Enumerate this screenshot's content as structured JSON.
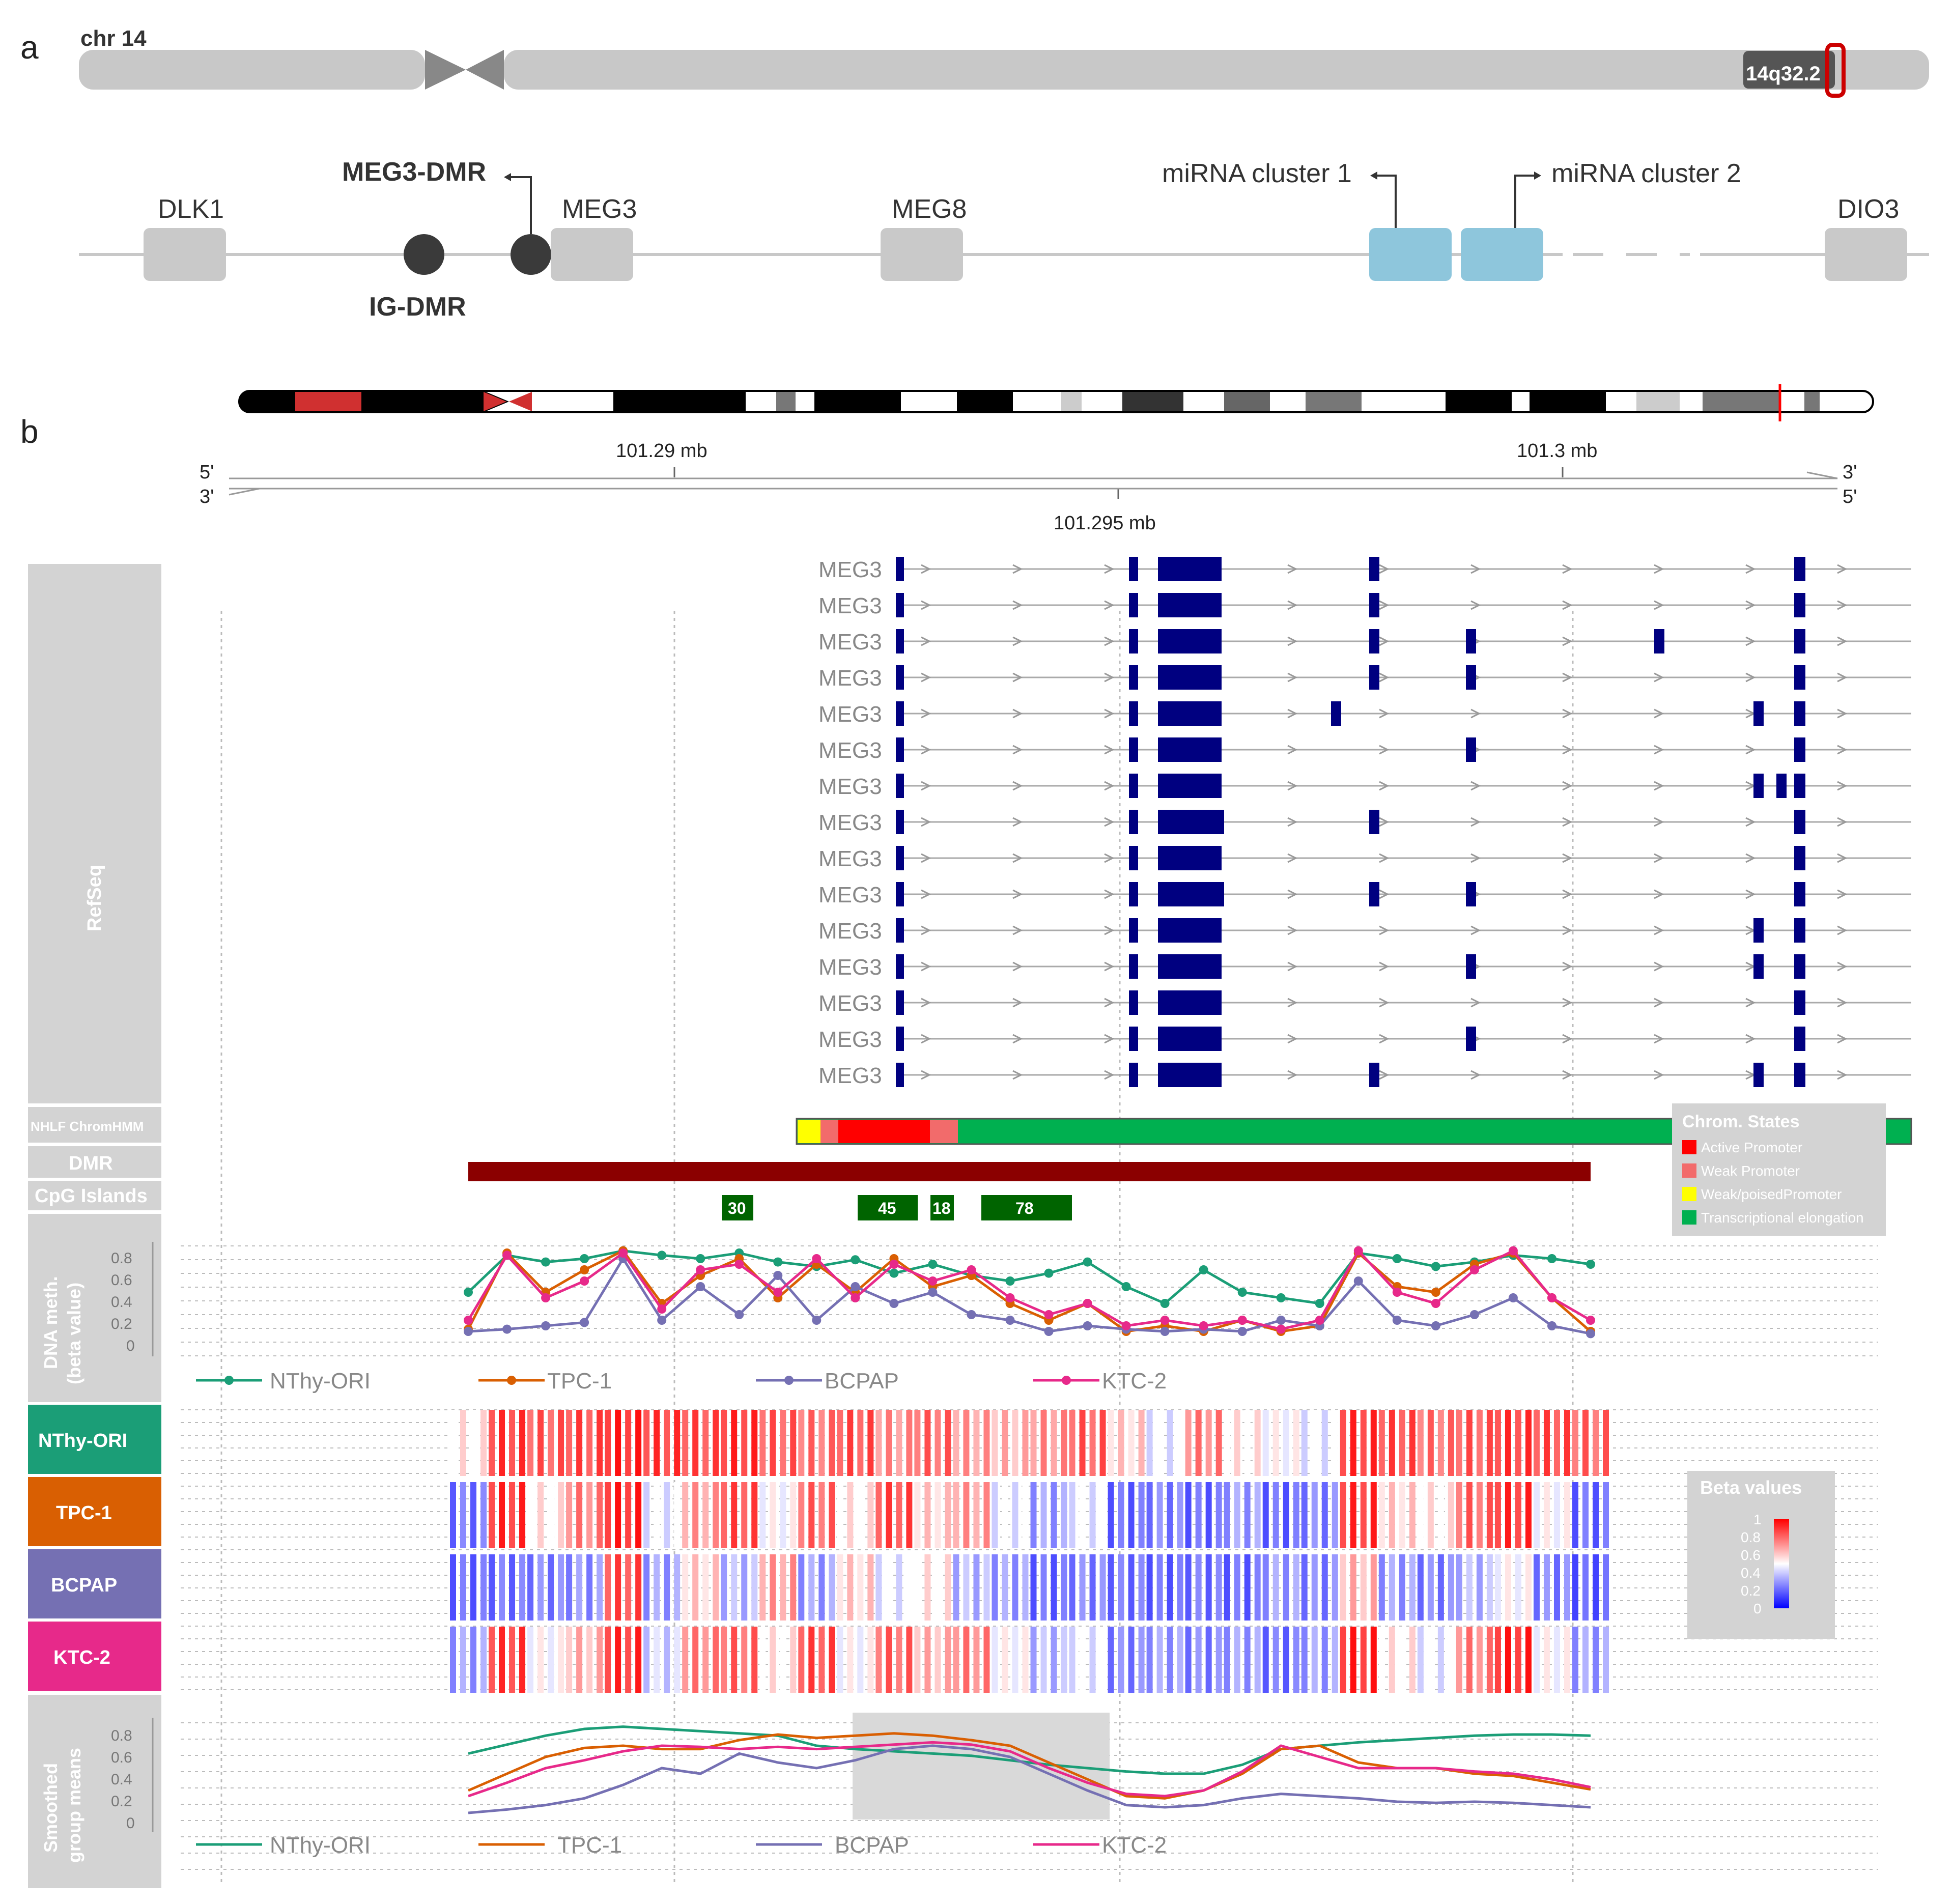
{
  "panel_a": {
    "letter": "a",
    "chromosome_label": "chr 14",
    "band_label": "14q32.2",
    "genes": {
      "dlk1": "DLK1",
      "meg3": "MEG3",
      "meg8": "MEG8",
      "dio3": "DIO3"
    },
    "meg3_dmr_label": "MEG3-DMR",
    "ig_dmr_label": "IG-DMR",
    "mirna_cluster_1": "miRNA cluster 1",
    "mirna_cluster_2": "miRNA cluster 2",
    "colors": {
      "gene_box": "#c9c9c9",
      "mirna_box": "#8ec6dc",
      "dmr_dot": "#3a3a3a",
      "band_highlight": "#cc0000"
    }
  },
  "panel_b": {
    "letter": "b",
    "axis": {
      "ticks_top": [
        "101.29 mb",
        "101.3 mb"
      ],
      "tick_bottom": "101.295 mb",
      "strand_5p": "5'",
      "strand_3p": "3'"
    },
    "tracks": {
      "refseq": "RefSeq",
      "chromhmm": "NHLF ChromHMM",
      "dmr": "DMR",
      "cpg": "CpG Islands",
      "dna_meth_line1": "DNA meth.",
      "dna_meth_line2": "(beta value)",
      "smoothed_line1": "Smoothed",
      "smoothed_line2": "group means"
    },
    "refseq_transcripts": [
      "MEG3",
      "MEG3",
      "MEG3",
      "MEG3",
      "MEG3",
      "MEG3",
      "MEG3",
      "MEG3",
      "MEG3",
      "MEG3",
      "MEG3",
      "MEG3",
      "MEG3",
      "MEG3",
      "MEG3"
    ],
    "cpg_islands": [
      "30",
      "45",
      "18",
      "78"
    ],
    "chrom_states_legend": {
      "title": "Chrom. States",
      "items": [
        {
          "label": "Active Promoter",
          "color": "#ff0000"
        },
        {
          "label": "Weak Promoter",
          "color": "#f26b6b"
        },
        {
          "label": "Weak/poisedPromoter",
          "color": "#ffff00"
        },
        {
          "label": "Transcriptional elongation",
          "color": "#00b050"
        }
      ]
    },
    "beta_legend": {
      "title": "Beta values",
      "ticks": [
        "1",
        "0.8",
        "0.6",
        "0.4",
        "0.2",
        "0"
      ]
    },
    "meth_axis_ticks": [
      "0.8",
      "0.6",
      "0.4",
      "0.2",
      "0"
    ],
    "smoothed_axis_ticks": [
      "0.8",
      "0.6",
      "0.4",
      "0.2",
      "0"
    ],
    "samples": [
      {
        "name": "NThy-ORI",
        "color": "#1b9e77"
      },
      {
        "name": "TPC-1",
        "color": "#d95f02"
      },
      {
        "name": "BCPAP",
        "color": "#7570b3"
      },
      {
        "name": "KTC-2",
        "color": "#e7298a"
      }
    ]
  },
  "chart_data": [
    {
      "type": "line",
      "ylabel": "DNA meth. (beta value)",
      "ylim": [
        0,
        1
      ],
      "x": [
        1,
        2,
        3,
        4,
        5,
        6,
        7,
        8,
        9,
        10,
        11,
        12,
        13,
        14,
        15,
        16,
        17,
        18,
        19,
        20,
        21,
        22,
        23,
        24,
        25,
        26,
        27,
        28,
        29,
        30
      ],
      "series": [
        {
          "name": "NThy-ORI",
          "values": [
            0.55,
            0.88,
            0.82,
            0.85,
            0.92,
            0.88,
            0.85,
            0.9,
            0.82,
            0.78,
            0.84,
            0.72,
            0.8,
            0.7,
            0.65,
            0.72,
            0.82,
            0.6,
            0.45,
            0.75,
            0.55,
            0.5,
            0.45,
            0.9,
            0.85,
            0.78,
            0.82,
            0.88,
            0.85,
            0.8
          ]
        },
        {
          "name": "TPC-1",
          "values": [
            0.22,
            0.9,
            0.55,
            0.75,
            0.92,
            0.45,
            0.7,
            0.85,
            0.5,
            0.8,
            0.55,
            0.85,
            0.6,
            0.7,
            0.45,
            0.3,
            0.45,
            0.2,
            0.25,
            0.2,
            0.3,
            0.2,
            0.25,
            0.9,
            0.6,
            0.55,
            0.8,
            0.9,
            0.5,
            0.2
          ]
        },
        {
          "name": "BCPAP",
          "values": [
            0.2,
            0.22,
            0.25,
            0.28,
            0.85,
            0.3,
            0.6,
            0.35,
            0.7,
            0.3,
            0.6,
            0.45,
            0.55,
            0.35,
            0.3,
            0.2,
            0.25,
            0.22,
            0.2,
            0.22,
            0.2,
            0.3,
            0.25,
            0.65,
            0.3,
            0.25,
            0.35,
            0.5,
            0.25,
            0.18
          ]
        },
        {
          "name": "KTC-2",
          "values": [
            0.3,
            0.88,
            0.5,
            0.65,
            0.9,
            0.4,
            0.75,
            0.8,
            0.55,
            0.85,
            0.5,
            0.8,
            0.65,
            0.75,
            0.5,
            0.35,
            0.45,
            0.25,
            0.3,
            0.25,
            0.3,
            0.22,
            0.3,
            0.92,
            0.55,
            0.45,
            0.75,
            0.92,
            0.5,
            0.3
          ]
        }
      ]
    },
    {
      "type": "line",
      "ylabel": "Smoothed group means",
      "ylim": [
        0,
        1
      ],
      "x": [
        1,
        2,
        3,
        4,
        5,
        6,
        7,
        8,
        9,
        10,
        11,
        12,
        13,
        14,
        15,
        16,
        17,
        18,
        19,
        20,
        21,
        22,
        23,
        24,
        25,
        26,
        27,
        28,
        29,
        30
      ],
      "series": [
        {
          "name": "NThy-ORI",
          "values": [
            0.68,
            0.76,
            0.84,
            0.9,
            0.92,
            0.9,
            0.88,
            0.86,
            0.84,
            0.75,
            0.72,
            0.7,
            0.68,
            0.66,
            0.62,
            0.58,
            0.55,
            0.52,
            0.5,
            0.5,
            0.58,
            0.72,
            0.75,
            0.78,
            0.8,
            0.82,
            0.84,
            0.85,
            0.85,
            0.84
          ]
        },
        {
          "name": "TPC-1",
          "values": [
            0.35,
            0.5,
            0.65,
            0.73,
            0.75,
            0.72,
            0.72,
            0.8,
            0.85,
            0.82,
            0.84,
            0.86,
            0.84,
            0.8,
            0.75,
            0.6,
            0.45,
            0.3,
            0.28,
            0.35,
            0.5,
            0.72,
            0.75,
            0.6,
            0.55,
            0.55,
            0.5,
            0.48,
            0.42,
            0.36
          ]
        },
        {
          "name": "BCPAP",
          "values": [
            0.15,
            0.18,
            0.22,
            0.28,
            0.4,
            0.55,
            0.5,
            0.68,
            0.6,
            0.55,
            0.62,
            0.72,
            0.75,
            0.72,
            0.65,
            0.5,
            0.35,
            0.22,
            0.2,
            0.22,
            0.28,
            0.32,
            0.3,
            0.28,
            0.25,
            0.24,
            0.25,
            0.24,
            0.22,
            0.2
          ]
        },
        {
          "name": "KTC-2",
          "values": [
            0.3,
            0.42,
            0.55,
            0.62,
            0.7,
            0.75,
            0.74,
            0.72,
            0.74,
            0.72,
            0.74,
            0.76,
            0.78,
            0.76,
            0.7,
            0.55,
            0.42,
            0.32,
            0.3,
            0.35,
            0.52,
            0.75,
            0.65,
            0.55,
            0.55,
            0.55,
            0.52,
            0.5,
            0.45,
            0.38
          ]
        }
      ]
    }
  ]
}
